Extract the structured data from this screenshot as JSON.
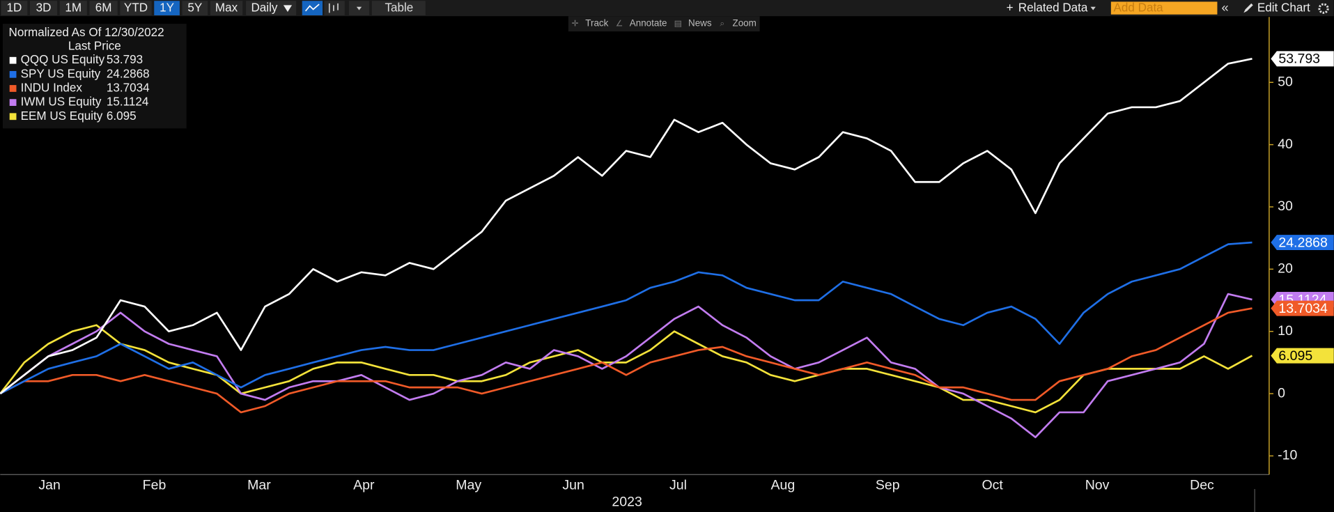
{
  "toolbar": {
    "ranges": [
      "1D",
      "3D",
      "1M",
      "6M",
      "YTD",
      "1Y",
      "5Y",
      "Max"
    ],
    "active_range": "1Y",
    "frequency": "Daily",
    "view": "Table",
    "related": "Related Data",
    "add_data_placeholder": "Add Data",
    "edit": "Edit Chart",
    "tools": [
      "Track",
      "Annotate",
      "News",
      "Zoom"
    ]
  },
  "chart_data": {
    "type": "line",
    "legend_title": "Normalized As Of 12/30/2022",
    "legend_subtitle": "Last Price",
    "x_labels": [
      "Jan",
      "Feb",
      "Mar",
      "Apr",
      "May",
      "Jun",
      "Jul",
      "Aug",
      "Sep",
      "Oct",
      "Nov",
      "Dec"
    ],
    "xlabel": "2023",
    "ylim": [
      -13,
      60.5
    ],
    "yticks": [
      -10,
      0,
      10,
      20,
      30,
      40,
      50
    ],
    "grid": false,
    "series": [
      {
        "name": "QQQ US Equity",
        "color": "#ffffff",
        "values": [
          0,
          3,
          6,
          7,
          9,
          15,
          14,
          10,
          11,
          13,
          7,
          14,
          16,
          20,
          18,
          19.5,
          19,
          21,
          20,
          23,
          26,
          31,
          33,
          35,
          38,
          35,
          39,
          38,
          44,
          42,
          43.5,
          40,
          37,
          36,
          38,
          42,
          41,
          39,
          34,
          34,
          37,
          39,
          36,
          29,
          37,
          41,
          45,
          46,
          46,
          47,
          50,
          53,
          53.793
        ]
      },
      {
        "name": "SPY US Equity",
        "color": "#1f6fe6",
        "values": [
          0,
          2,
          4,
          5,
          6,
          8,
          6,
          4,
          5,
          3,
          1,
          3,
          4,
          5,
          6,
          7,
          7.5,
          7,
          7,
          8,
          9,
          10,
          11,
          12,
          13,
          14,
          15,
          17,
          18,
          19.5,
          19,
          17,
          16,
          15,
          15,
          18,
          17,
          16,
          14,
          12,
          11,
          13,
          14,
          12,
          8,
          13,
          16,
          18,
          19,
          20,
          22,
          24,
          24.2868
        ]
      },
      {
        "name": "INDU Index",
        "color": "#f05a28",
        "values": [
          0,
          2,
          2,
          3,
          3,
          2,
          3,
          2,
          1,
          0,
          -3,
          -2,
          0,
          1,
          2,
          2,
          2,
          1,
          1,
          1,
          0,
          1,
          2,
          3,
          4,
          5,
          3,
          5,
          6,
          7,
          7.5,
          6,
          5,
          4,
          3,
          4,
          5,
          4,
          3,
          1,
          1,
          0,
          -1,
          -1,
          2,
          3,
          4,
          6,
          7,
          9,
          11,
          13,
          13.7034
        ]
      },
      {
        "name": "IWM US Equity",
        "color": "#c27cf0",
        "values": [
          0,
          3,
          6,
          8,
          10,
          13,
          10,
          8,
          7,
          6,
          0,
          -1,
          1,
          2,
          2,
          3,
          1,
          -1,
          0,
          2,
          3,
          5,
          4,
          7,
          6,
          4,
          6,
          9,
          12,
          14,
          11,
          9,
          6,
          4,
          5,
          7,
          9,
          5,
          4,
          1,
          0,
          -2,
          -4,
          -7,
          -3,
          -3,
          2,
          3,
          4,
          5,
          8,
          16,
          15.1124
        ]
      },
      {
        "name": "EEM US Equity",
        "color": "#f3e23a",
        "values": [
          0,
          5,
          8,
          10,
          11,
          8,
          7,
          5,
          4,
          3,
          0,
          1,
          2,
          4,
          5,
          5,
          4,
          3,
          3,
          2,
          2,
          3,
          5,
          6,
          7,
          5,
          5,
          7,
          10,
          8,
          6,
          5,
          3,
          2,
          3,
          4,
          4,
          3,
          2,
          1,
          -1,
          -1,
          -2,
          -3,
          -1,
          3,
          4,
          4,
          4,
          4,
          6,
          4,
          6.095
        ]
      }
    ]
  }
}
